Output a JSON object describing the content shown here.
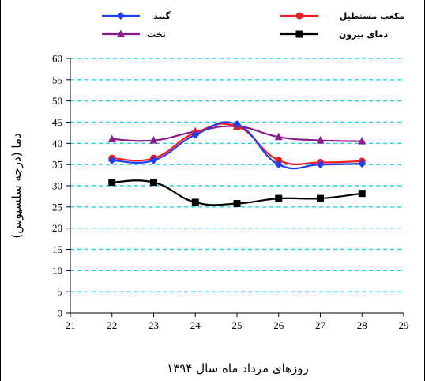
{
  "chart_data": {
    "type": "line",
    "title": "",
    "xlabel": "روزهای مرداد ماه سال ۱۳۹۴",
    "ylabel": "دما (درجه سلسیوس)",
    "xlim": [
      21,
      29
    ],
    "ylim": [
      0,
      60
    ],
    "xticks": [
      21,
      22,
      23,
      24,
      25,
      26,
      27,
      28,
      29
    ],
    "yticks": [
      0,
      5,
      10,
      15,
      20,
      25,
      30,
      35,
      40,
      45,
      50,
      55,
      60
    ],
    "grid": "horizontal dashed",
    "grid_color": "#22d3e6",
    "legend_position": "top",
    "x": [
      22,
      23,
      24,
      25,
      26,
      27,
      28
    ],
    "series": [
      {
        "name": "گنبد",
        "color": "#1f3ff0",
        "marker": "diamond",
        "values": [
          36,
          36,
          42,
          44.5,
          35,
          35,
          35.2
        ]
      },
      {
        "name": "مکعب مستطیل",
        "color": "#ee1c24",
        "marker": "circle",
        "values": [
          36.5,
          36.5,
          42.5,
          44,
          36,
          35.5,
          35.8
        ]
      },
      {
        "name": "تخت",
        "color": "#8b1a8b",
        "marker": "triangle",
        "values": [
          41,
          40.7,
          42.8,
          44,
          41.5,
          40.7,
          40.5
        ]
      },
      {
        "name": "دمای بیرون",
        "color": "#000000",
        "marker": "square",
        "values": [
          30.8,
          30.8,
          26.1,
          25.8,
          27,
          27,
          28.2
        ]
      }
    ]
  }
}
